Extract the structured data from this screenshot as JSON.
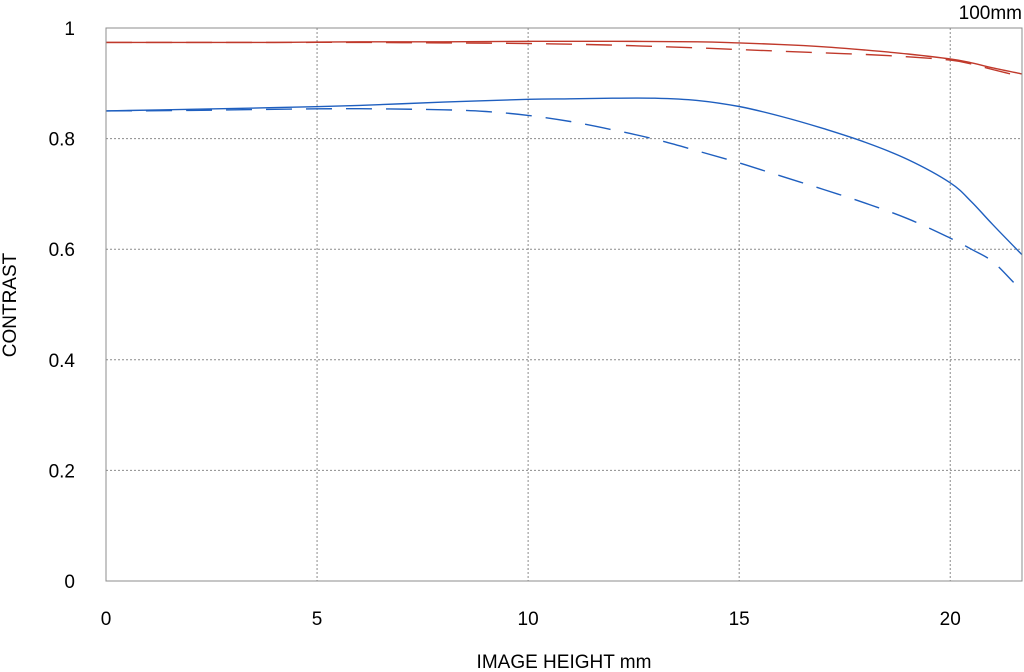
{
  "chart_data": {
    "type": "line",
    "title": "",
    "corner_label": "100mm",
    "xlabel": "IMAGE HEIGHT  mm",
    "ylabel": "CONTRAST",
    "xlim": [
      0,
      21.7
    ],
    "ylim": [
      0,
      1
    ],
    "x_ticks": [
      0,
      5,
      10,
      15,
      20
    ],
    "y_ticks": [
      {
        "value": 0,
        "label": "0"
      },
      {
        "value": 0.2,
        "label": "0.2"
      },
      {
        "value": 0.4,
        "label": "0.4"
      },
      {
        "value": 0.6,
        "label": "0.6"
      },
      {
        "value": 0.8,
        "label": "0.8"
      },
      {
        "value": 1,
        "label": "1"
      }
    ],
    "grid": true,
    "series": [
      {
        "color": "#c0392b",
        "style": "solid",
        "x": [
          0,
          2,
          4,
          6,
          8,
          10,
          12,
          14,
          15,
          16,
          17,
          18,
          19,
          20,
          20.5,
          21,
          21.7
        ],
        "y": [
          0.974,
          0.974,
          0.974,
          0.975,
          0.975,
          0.976,
          0.976,
          0.975,
          0.973,
          0.97,
          0.966,
          0.96,
          0.953,
          0.944,
          0.937,
          0.928,
          0.917
        ]
      },
      {
        "color": "#c0392b",
        "style": "dashed",
        "x": [
          0,
          2,
          4,
          6,
          8,
          10,
          12,
          14,
          15,
          16,
          17,
          18,
          19,
          20,
          20.5,
          21,
          21.7
        ],
        "y": [
          0.974,
          0.974,
          0.974,
          0.974,
          0.973,
          0.972,
          0.969,
          0.964,
          0.961,
          0.958,
          0.955,
          0.952,
          0.948,
          0.942,
          0.935,
          0.925,
          0.912
        ]
      },
      {
        "color": "#1f5fbf",
        "style": "solid",
        "x": [
          0,
          2,
          4,
          6,
          8,
          10,
          11,
          12,
          13,
          14,
          15,
          16,
          17,
          18,
          19,
          20,
          20.5,
          21,
          21.7
        ],
        "y": [
          0.85,
          0.853,
          0.856,
          0.86,
          0.866,
          0.871,
          0.872,
          0.873,
          0.873,
          0.869,
          0.858,
          0.84,
          0.818,
          0.793,
          0.762,
          0.72,
          0.686,
          0.645,
          0.59
        ]
      },
      {
        "color": "#1f5fbf",
        "style": "dashed",
        "x": [
          0,
          2,
          4,
          6,
          8,
          9,
          10,
          11,
          12,
          13,
          14,
          15,
          16,
          17,
          18,
          19,
          20,
          20.5,
          21,
          21.5
        ],
        "y": [
          0.85,
          0.851,
          0.853,
          0.854,
          0.852,
          0.849,
          0.842,
          0.831,
          0.816,
          0.799,
          0.778,
          0.756,
          0.732,
          0.708,
          0.683,
          0.655,
          0.62,
          0.6,
          0.578,
          0.54
        ]
      }
    ]
  }
}
